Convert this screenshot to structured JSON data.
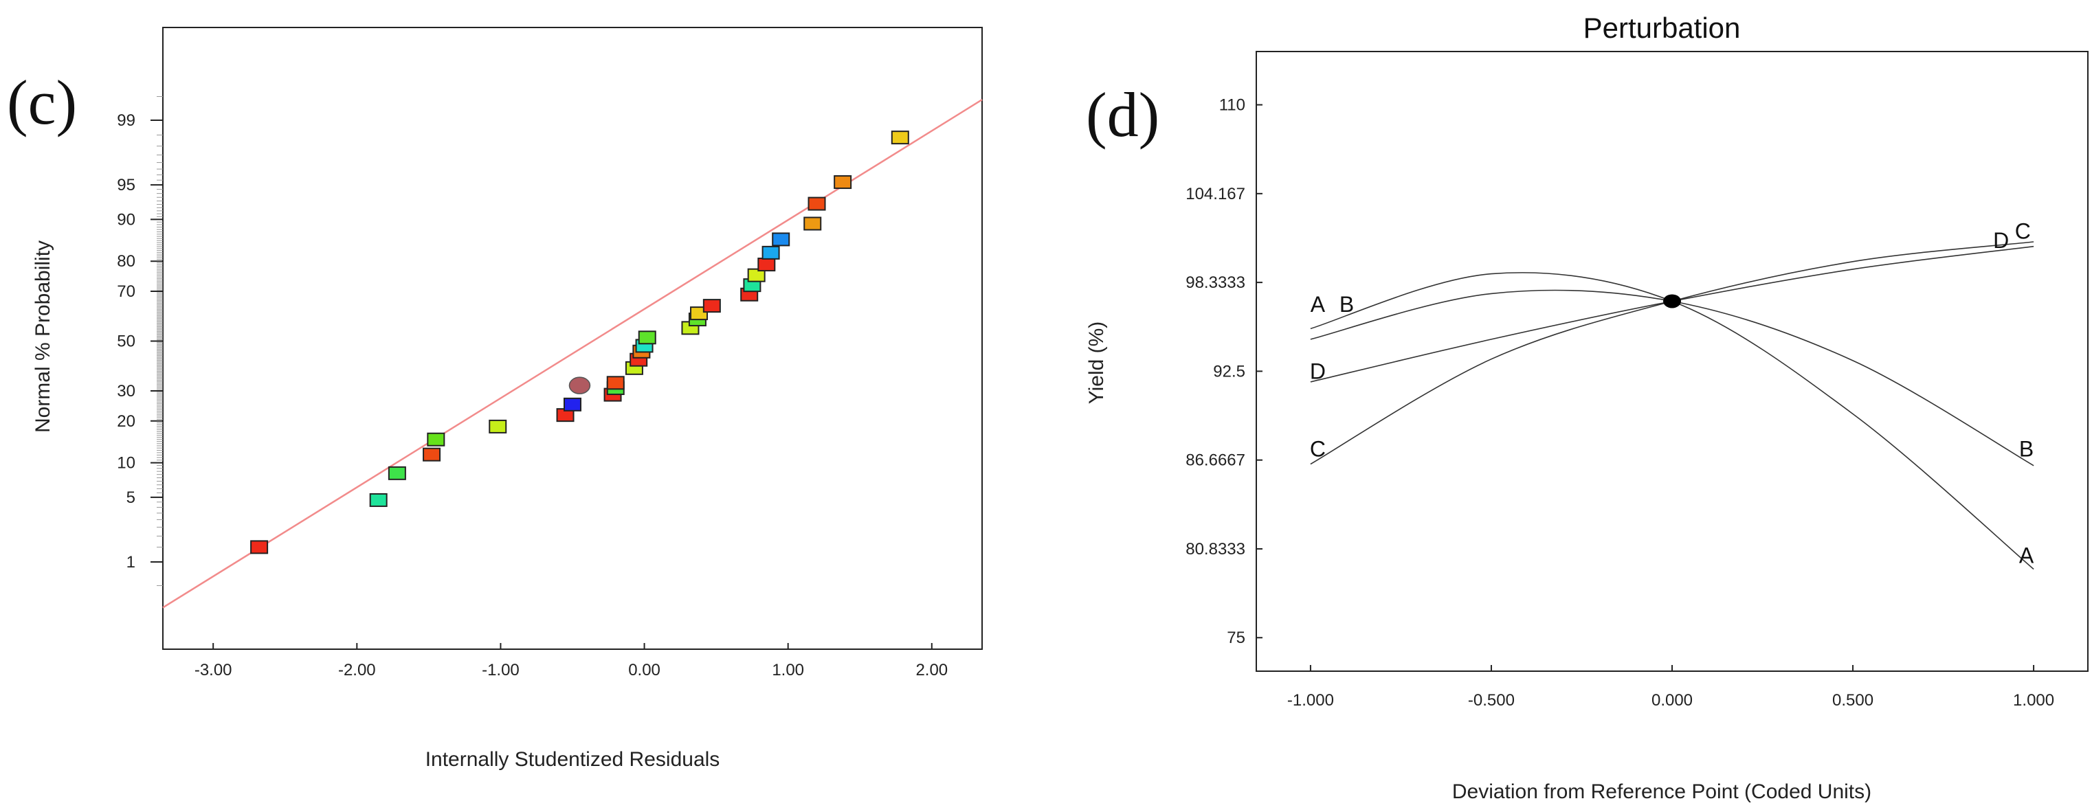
{
  "chart_data": [
    {
      "type": "scatter",
      "panel_label": "(c)",
      "title": "",
      "xlabel": "Internally Studentized Residuals",
      "ylabel": "Normal % Probability",
      "xlim": [
        -3.35,
        2.35
      ],
      "xticks": [
        -3.0,
        -2.0,
        -1.0,
        0.0,
        1.0,
        2.0
      ],
      "xtick_labels": [
        "-3.00",
        "-2.00",
        "-1.00",
        "0.00",
        "1.00",
        "2.00"
      ],
      "yticks": [
        1,
        5,
        10,
        20,
        30,
        50,
        70,
        80,
        90,
        95,
        99
      ],
      "ytick_labels": [
        "1",
        "5",
        "10",
        "20",
        "30",
        "50",
        "70",
        "80",
        "90",
        "95",
        "99"
      ],
      "reference_line": {
        "color": "#f28b8b",
        "from": [
          -3.35,
          0.25
        ],
        "to": [
          2.35,
          99.45
        ]
      },
      "points": [
        {
          "x": -2.68,
          "y": 1.5,
          "color": "#ee2a1a"
        },
        {
          "x": -1.85,
          "y": 4.7,
          "color": "#1ee39a"
        },
        {
          "x": -1.72,
          "y": 8.2,
          "color": "#3ee24a"
        },
        {
          "x": -1.48,
          "y": 11.6,
          "color": "#ee4a12"
        },
        {
          "x": -1.45,
          "y": 15.0,
          "color": "#66e21a"
        },
        {
          "x": -1.02,
          "y": 18.4,
          "color": "#c6ee1a"
        },
        {
          "x": -0.55,
          "y": 21.8,
          "color": "#ee2a1a"
        },
        {
          "x": -0.5,
          "y": 25.2,
          "color": "#2222ee"
        },
        {
          "x": -0.45,
          "y": 32.0,
          "color": "#b05a60",
          "shape": "circle"
        },
        {
          "x": -0.22,
          "y": 28.6,
          "color": "#ee2a1a"
        },
        {
          "x": -0.2,
          "y": 31.0,
          "color": "#48e23a"
        },
        {
          "x": -0.2,
          "y": 33.0,
          "color": "#ee4a12"
        },
        {
          "x": -0.07,
          "y": 38.8,
          "color": "#c6ee1a"
        },
        {
          "x": -0.04,
          "y": 42.2,
          "color": "#ee2a1a"
        },
        {
          "x": -0.02,
          "y": 45.6,
          "color": "#ee7a12"
        },
        {
          "x": 0.0,
          "y": 48.0,
          "color": "#1ee3c8"
        },
        {
          "x": 0.02,
          "y": 51.5,
          "color": "#5ee22a"
        },
        {
          "x": 0.32,
          "y": 55.5,
          "color": "#c6ee1a"
        },
        {
          "x": 0.37,
          "y": 59.0,
          "color": "#5ee22a"
        },
        {
          "x": 0.38,
          "y": 61.5,
          "color": "#eecb1a"
        },
        {
          "x": 0.47,
          "y": 64.5,
          "color": "#ee2a1a"
        },
        {
          "x": 0.73,
          "y": 68.8,
          "color": "#ee2a1a"
        },
        {
          "x": 0.75,
          "y": 72.2,
          "color": "#1ee39a"
        },
        {
          "x": 0.78,
          "y": 75.6,
          "color": "#d6ee1a"
        },
        {
          "x": 0.85,
          "y": 79.0,
          "color": "#ee2a1a"
        },
        {
          "x": 0.88,
          "y": 82.4,
          "color": "#1aa8ee"
        },
        {
          "x": 0.95,
          "y": 85.8,
          "color": "#1a8aee"
        },
        {
          "x": 1.17,
          "y": 89.2,
          "color": "#ee9a12"
        },
        {
          "x": 1.2,
          "y": 92.6,
          "color": "#ee4a12"
        },
        {
          "x": 1.38,
          "y": 95.3,
          "color": "#ee8a12"
        },
        {
          "x": 1.78,
          "y": 98.4,
          "color": "#eecb1a"
        }
      ]
    },
    {
      "type": "line",
      "panel_label": "(d)",
      "title": "Perturbation",
      "xlabel": "Deviation from Reference Point (Coded Units)",
      "ylabel": "Yield (%)",
      "xlim": [
        -1.15,
        1.15
      ],
      "ylim": [
        72.8,
        113.5
      ],
      "xticks": [
        -1.0,
        -0.5,
        0.0,
        0.5,
        1.0
      ],
      "xtick_labels": [
        "-1.000",
        "-0.500",
        "0.000",
        "0.500",
        "1.000"
      ],
      "yticks": [
        75,
        80.8333,
        86.6667,
        92.5,
        98.3333,
        104.167,
        110
      ],
      "ytick_labels": [
        "75",
        "80.8333",
        "86.6667",
        "92.5",
        "98.3333",
        "104.167",
        "110"
      ],
      "reference_point": {
        "x": 0.0,
        "y": 97.1
      },
      "series": [
        {
          "name": "A",
          "x": [
            -1.0,
            -0.5,
            0.0,
            0.5,
            1.0
          ],
          "y": [
            95.3,
            98.9,
            97.1,
            89.7,
            79.5
          ]
        },
        {
          "name": "B",
          "x": [
            -1.0,
            -0.5,
            0.0,
            0.5,
            1.0
          ],
          "y": [
            94.6,
            97.6,
            97.1,
            93.2,
            86.3
          ]
        },
        {
          "name": "C",
          "x": [
            -1.0,
            -0.5,
            0.0,
            0.5,
            1.0
          ],
          "y": [
            86.4,
            93.3,
            97.1,
            99.7,
            101.0
          ]
        },
        {
          "name": "D",
          "x": [
            -1.0,
            -0.5,
            0.0,
            0.5,
            1.0
          ],
          "y": [
            91.8,
            94.6,
            97.1,
            99.2,
            100.7
          ]
        }
      ],
      "curve_labels": [
        {
          "text": "A",
          "x": -0.98,
          "y": 96.4
        },
        {
          "text": "B",
          "x": -0.9,
          "y": 96.4
        },
        {
          "text": "D",
          "x": -0.98,
          "y": 92.0
        },
        {
          "text": "C",
          "x": -0.98,
          "y": 86.9
        },
        {
          "text": "D",
          "x": 0.91,
          "y": 100.6
        },
        {
          "text": "C",
          "x": 0.97,
          "y": 101.2
        },
        {
          "text": "B",
          "x": 0.98,
          "y": 86.9
        },
        {
          "text": "A",
          "x": 0.98,
          "y": 79.9
        }
      ]
    }
  ]
}
